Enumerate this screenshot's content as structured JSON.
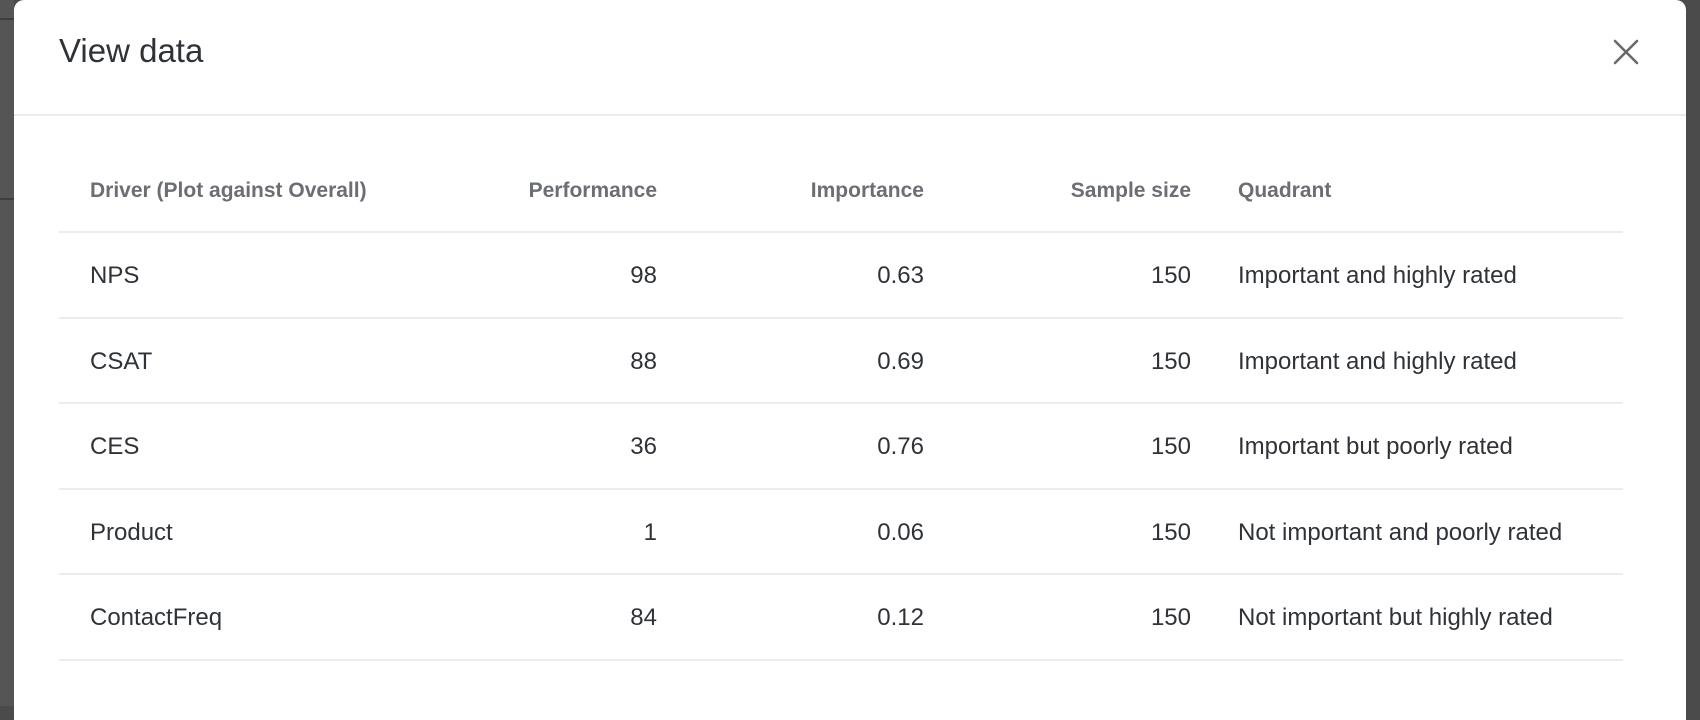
{
  "dialog": {
    "title": "View data",
    "close_icon": "close-x-icon"
  },
  "table": {
    "columns": [
      "Driver (Plot against Overall)",
      "Performance",
      "Importance",
      "Sample size",
      "Quadrant"
    ],
    "rows": [
      [
        "NPS",
        "98",
        "0.63",
        "150",
        "Important and highly rated"
      ],
      [
        "CSAT",
        "88",
        "0.69",
        "150",
        "Important and highly rated"
      ],
      [
        "CES",
        "36",
        "0.76",
        "150",
        "Important but poorly rated"
      ],
      [
        "Product",
        "1",
        "0.06",
        "150",
        "Not important and poorly rated"
      ],
      [
        "ContactFreq",
        "84",
        "0.12",
        "150",
        "Not important but highly rated"
      ]
    ]
  }
}
